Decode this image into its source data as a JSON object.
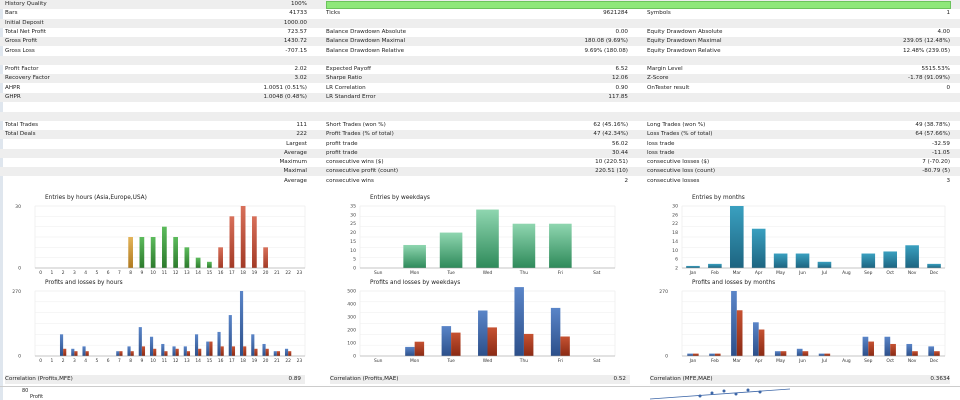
{
  "left_rows": [
    [
      "History Quality",
      "100%"
    ],
    [
      "Bars",
      "41733"
    ],
    [
      "Initial Deposit",
      "1000.00"
    ],
    [
      "Total Net Profit",
      "723.57"
    ],
    [
      "Gross Profit",
      "1430.72"
    ],
    [
      "Gross Loss",
      "-707.15"
    ],
    [
      "",
      ""
    ],
    [
      "Profit Factor",
      "2.02"
    ],
    [
      "Recovery Factor",
      "3.02"
    ],
    [
      "AHPR",
      "1.0051 (0.51%)"
    ],
    [
      "GHPR",
      "1.0048 (0.48%)"
    ],
    [
      "",
      ""
    ],
    [
      "",
      ""
    ],
    [
      "Total Trades",
      "111"
    ],
    [
      "Total Deals",
      "222"
    ],
    [
      "Largest",
      ""
    ],
    [
      "Average",
      ""
    ],
    [
      "Maximum",
      ""
    ],
    [
      "Maximal",
      ""
    ],
    [
      "Average",
      ""
    ]
  ],
  "mid_rows": [
    [
      "",
      ""
    ],
    [
      "Ticks",
      "9621284"
    ],
    [
      "",
      ""
    ],
    [
      "Balance Drawdown Absolute",
      "0.00"
    ],
    [
      "Balance Drawdown Maximal",
      "180.08 (9.69%)"
    ],
    [
      "Balance Drawdown Relative",
      "9.69% (180.08)"
    ],
    [
      "",
      ""
    ],
    [
      "Expected Payoff",
      "6.52"
    ],
    [
      "Sharpe Ratio",
      "12.06"
    ],
    [
      "LR Correlation",
      "0.90"
    ],
    [
      "LR Standard Error",
      "117.85"
    ],
    [
      "",
      ""
    ],
    [
      "",
      ""
    ],
    [
      "Short Trades (won %)",
      "62 (45.16%)"
    ],
    [
      "Profit Trades (% of total)",
      "47 (42.34%)"
    ],
    [
      "profit trade",
      "56.02"
    ],
    [
      "profit trade",
      "30.44"
    ],
    [
      "consecutive wins ($)",
      "10 (220.51)"
    ],
    [
      "consecutive profit (count)",
      "220.51 (10)"
    ],
    [
      "consecutive wins",
      "2"
    ]
  ],
  "right_rows": [
    [
      "",
      ""
    ],
    [
      "Symbols",
      "1"
    ],
    [
      "",
      ""
    ],
    [
      "Equity Drawdown Absolute",
      "4.00"
    ],
    [
      "Equity Drawdown Maximal",
      "239.05 (12.48%)"
    ],
    [
      "Equity Drawdown Relative",
      "12.48% (239.05)"
    ],
    [
      "",
      ""
    ],
    [
      "Margin Level",
      "5515.53%"
    ],
    [
      "Z-Score",
      "-1.78 (91.09%)"
    ],
    [
      "OnTester result",
      "0"
    ],
    [
      "",
      ""
    ],
    [
      "",
      ""
    ],
    [
      "",
      ""
    ],
    [
      "Long Trades (won %)",
      "49 (38.78%)"
    ],
    [
      "Loss Trades (% of total)",
      "64 (57.66%)"
    ],
    [
      "loss trade",
      "-32.59"
    ],
    [
      "loss trade",
      "-11.05"
    ],
    [
      "consecutive losses ($)",
      "7 (-70.20)"
    ],
    [
      "consecutive loss (count)",
      "-80.79 (5)"
    ],
    [
      "consecutive losses",
      "3"
    ]
  ],
  "colors": {
    "green": "#3c9a3c",
    "red": "#c0503a",
    "orange": "#c8922a",
    "teal": "#2a7fa0",
    "blue": "#3d67a8",
    "darkred": "#a83a22",
    "quality": "#8fe87a"
  },
  "charts": [
    {
      "id": "hours-entries",
      "title": "Entries by hours (Asia,Europe,USA)",
      "ylim": [
        0,
        30
      ],
      "ylabel_top": "30",
      "categories": [
        "0",
        "1",
        "2",
        "3",
        "4",
        "5",
        "6",
        "7",
        "8",
        "9",
        "10",
        "11",
        "12",
        "13",
        "14",
        "15",
        "16",
        "17",
        "18",
        "19",
        "20",
        "21",
        "22",
        "23"
      ],
      "values": [
        0,
        0,
        0,
        0,
        0,
        0,
        0,
        0,
        15,
        15,
        15,
        20,
        15,
        10,
        5,
        3,
        10,
        25,
        30,
        25,
        10,
        0,
        0,
        0
      ],
      "colorkeys": [
        "orange",
        "orange",
        "orange",
        "orange",
        "orange",
        "orange",
        "orange",
        "orange",
        "orange",
        "green",
        "green",
        "green",
        "green",
        "green",
        "green",
        "green",
        "red",
        "red",
        "red",
        "red",
        "red",
        "red",
        "red",
        "red"
      ]
    },
    {
      "id": "weekday-entries",
      "title": "Entries by weekdays",
      "ylim": [
        0,
        35
      ],
      "yticks": [
        "35",
        "30",
        "25",
        "20",
        "15",
        "10",
        "5",
        "0"
      ],
      "categories": [
        "Sun",
        "Mon",
        "Tue",
        "Wed",
        "Thu",
        "Fri",
        "Sat"
      ],
      "values": [
        0,
        13,
        20,
        33,
        25,
        25,
        0
      ]
    },
    {
      "id": "month-entries",
      "title": "Entries by months",
      "ylim": [
        0,
        30
      ],
      "yticks": [
        "30",
        "26",
        "22",
        "18",
        "14",
        "10",
        "6",
        "2"
      ],
      "categories": [
        "Jan",
        "Feb",
        "Mar",
        "Apr",
        "May",
        "Jun",
        "Jul",
        "Aug",
        "Sep",
        "Oct",
        "Nov",
        "Dec"
      ],
      "values": [
        1,
        2,
        30,
        19,
        7,
        7,
        3,
        0,
        7,
        8,
        11,
        2
      ]
    },
    {
      "id": "hours-pl",
      "title": "Profits and losses by hours",
      "ylim": [
        0,
        270
      ],
      "ylabel_top": "270",
      "categories": [
        "0",
        "1",
        "2",
        "3",
        "4",
        "5",
        "6",
        "7",
        "8",
        "9",
        "10",
        "11",
        "12",
        "13",
        "14",
        "15",
        "16",
        "17",
        "18",
        "19",
        "20",
        "21",
        "22",
        "23"
      ],
      "profits": [
        0,
        0,
        90,
        30,
        40,
        0,
        0,
        20,
        40,
        120,
        80,
        50,
        40,
        40,
        90,
        60,
        100,
        170,
        270,
        90,
        50,
        20,
        30,
        0
      ],
      "losses": [
        0,
        0,
        30,
        20,
        20,
        0,
        0,
        20,
        20,
        40,
        30,
        20,
        30,
        20,
        30,
        60,
        40,
        40,
        40,
        30,
        30,
        20,
        20,
        0
      ]
    },
    {
      "id": "weekday-pl",
      "title": "Profits and losses by weekdays",
      "ylim": [
        0,
        500
      ],
      "yticks": [
        "500",
        "400",
        "300",
        "200",
        "100",
        "0"
      ],
      "categories": [
        "Sun",
        "Mon",
        "Tue",
        "Wed",
        "Thu",
        "Fri",
        "Sat"
      ],
      "profits": [
        0,
        70,
        230,
        350,
        530,
        370,
        0
      ],
      "losses": [
        0,
        110,
        180,
        220,
        170,
        150,
        0
      ]
    },
    {
      "id": "month-pl",
      "title": "Profits and losses by months",
      "ylim": [
        0,
        270
      ],
      "ylabel_top": "270",
      "categories": [
        "Jan",
        "Feb",
        "Mar",
        "Apr",
        "May",
        "Jun",
        "Jul",
        "Aug",
        "Sep",
        "Oct",
        "Nov",
        "Dec"
      ],
      "profits": [
        10,
        10,
        270,
        140,
        20,
        30,
        10,
        0,
        80,
        80,
        50,
        40
      ],
      "losses": [
        10,
        10,
        190,
        110,
        20,
        20,
        10,
        0,
        60,
        50,
        20,
        20
      ]
    }
  ],
  "correlations": [
    {
      "label": "Correlation (Profits,MFE)",
      "value": "0.89"
    },
    {
      "label": "Correlation (Profits,MAE)",
      "value": "0.52"
    },
    {
      "label": "Correlation (MFE,MAE)",
      "value": "0.3634"
    }
  ],
  "bottom": {
    "ytick": "80",
    "label": "Profit"
  }
}
